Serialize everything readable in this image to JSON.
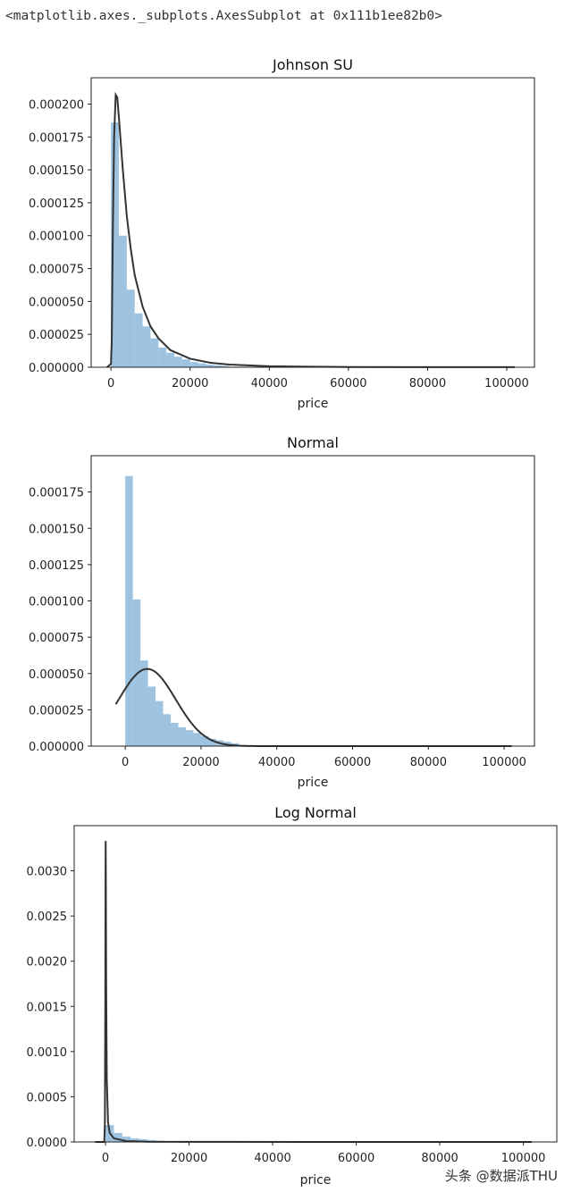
{
  "repr_text": "<matplotlib.axes._subplots.AxesSubplot at 0x111b1ee82b0>",
  "watermark": "头条 @数据派THU",
  "colors": {
    "hist": "#9dc3e0",
    "curve": "#333333",
    "axis": "#222222"
  },
  "chart_data": [
    {
      "type": "bar",
      "title": "Johnson SU",
      "xlabel": "price",
      "ylabel": "",
      "xlim": [
        -5000,
        107000
      ],
      "ylim": [
        0,
        0.00022
      ],
      "xticks": [
        0,
        20000,
        40000,
        60000,
        80000,
        100000
      ],
      "yticks": [
        0,
        2.5e-05,
        5e-05,
        7.5e-05,
        0.0001,
        0.000125,
        0.00015,
        0.000175,
        0.0002
      ],
      "ytick_labels": [
        "0.000000",
        "0.000025",
        "0.000050",
        "0.000075",
        "0.000100",
        "0.000125",
        "0.000150",
        "0.000175",
        "0.000200"
      ],
      "bin_width": 2000,
      "bin_starts": [
        0,
        2000,
        4000,
        6000,
        8000,
        10000,
        12000,
        14000,
        16000,
        18000,
        20000,
        22000,
        24000,
        26000,
        28000
      ],
      "values": [
        0.000186,
        0.0001,
        5.9e-05,
        4.1e-05,
        3.1e-05,
        2.2e-05,
        1.5e-05,
        1.1e-05,
        8e-06,
        6e-06,
        4e-06,
        3e-06,
        2e-06,
        1.5e-06,
        1e-06
      ],
      "fit_curve": {
        "name": "Johnson SU",
        "x": [
          -1000,
          0,
          200,
          500,
          800,
          1200,
          1600,
          2000,
          3000,
          4000,
          5000,
          6000,
          8000,
          10000,
          12000,
          15000,
          20000,
          25000,
          30000,
          40000,
          50000,
          60000,
          80000,
          100000,
          102000
        ],
        "y": [
          0,
          2.5e-06,
          2e-05,
          0.00011,
          0.000175,
          0.000207,
          0.000205,
          0.00019,
          0.00015,
          0.000115,
          9e-05,
          7e-05,
          4.6e-05,
          3.1e-05,
          2.2e-05,
          1.3e-05,
          6.5e-06,
          3.5e-06,
          2e-06,
          8e-07,
          4e-07,
          2e-07,
          1e-07,
          5e-08,
          5e-08
        ]
      }
    },
    {
      "type": "bar",
      "title": "Normal",
      "xlabel": "price",
      "ylabel": "",
      "xlim": [
        -9000,
        108000
      ],
      "ylim": [
        0,
        0.0002
      ],
      "xticks": [
        0,
        20000,
        40000,
        60000,
        80000,
        100000
      ],
      "yticks": [
        0,
        2.5e-05,
        5e-05,
        7.5e-05,
        0.0001,
        0.000125,
        0.00015,
        0.000175
      ],
      "ytick_labels": [
        "0.000000",
        "0.000025",
        "0.000050",
        "0.000075",
        "0.000100",
        "0.000125",
        "0.000150",
        "0.000175"
      ],
      "bin_width": 2000,
      "bin_starts": [
        0,
        2000,
        4000,
        6000,
        8000,
        10000,
        12000,
        14000,
        16000,
        18000,
        20000,
        22000,
        24000,
        26000,
        28000
      ],
      "values": [
        0.000186,
        0.000101,
        5.9e-05,
        4.1e-05,
        3.1e-05,
        2.2e-05,
        1.6e-05,
        1.3e-05,
        1.1e-05,
        9e-06,
        7e-06,
        5e-06,
        4e-06,
        3e-06,
        2e-06
      ],
      "fit_curve": {
        "name": "Normal",
        "mean": 5800,
        "sd": 7500,
        "x_range": [
          -2500,
          102000
        ]
      }
    },
    {
      "type": "bar",
      "title": "Log Normal",
      "xlabel": "price",
      "ylabel": "",
      "xlim": [
        -7500,
        108000
      ],
      "ylim": [
        0,
        0.0035
      ],
      "xticks": [
        0,
        20000,
        40000,
        60000,
        80000,
        100000
      ],
      "yticks": [
        0,
        0.0005,
        0.001,
        0.0015,
        0.002,
        0.0025,
        0.003
      ],
      "ytick_labels": [
        "0.0000",
        "0.0005",
        "0.0010",
        "0.0015",
        "0.0020",
        "0.0025",
        "0.0030"
      ],
      "bin_width": 2000,
      "bin_starts": [
        0,
        2000,
        4000,
        6000,
        8000,
        10000,
        12000
      ],
      "values": [
        0.000186,
        0.0001,
        5.9e-05,
        4.1e-05,
        3.1e-05,
        2.2e-05,
        1.5e-05
      ],
      "fit_curve": {
        "name": "Log Normal",
        "x": [
          -2500,
          -300,
          -150,
          -50,
          0,
          40,
          80,
          150,
          300,
          600,
          1000,
          2000,
          5000,
          10000,
          20000,
          50000,
          102000
        ],
        "y": [
          0,
          0,
          0.0002,
          0.0016,
          0.0029,
          0.00333,
          0.0029,
          0.0018,
          0.0007,
          0.00022,
          0.0001,
          4e-05,
          1e-05,
          3e-06,
          1e-06,
          2e-07,
          0
        ]
      }
    }
  ]
}
